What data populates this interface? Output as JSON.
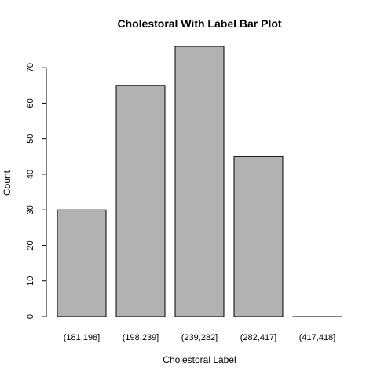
{
  "chart_data": {
    "type": "bar",
    "title": "Cholestoral With Label Bar Plot",
    "xlabel": "Cholestoral Label",
    "ylabel": "Count",
    "categories": [
      "(181,198]",
      "(198,239]",
      "(239,282]",
      "(282,417]",
      "(417,418]"
    ],
    "values": [
      30,
      65,
      76,
      45,
      0
    ],
    "ylim": [
      0,
      76
    ],
    "yticks": [
      0,
      10,
      20,
      30,
      40,
      50,
      60,
      70
    ],
    "grid": false,
    "legend": "none",
    "bar_color": "#b2b2b2"
  }
}
